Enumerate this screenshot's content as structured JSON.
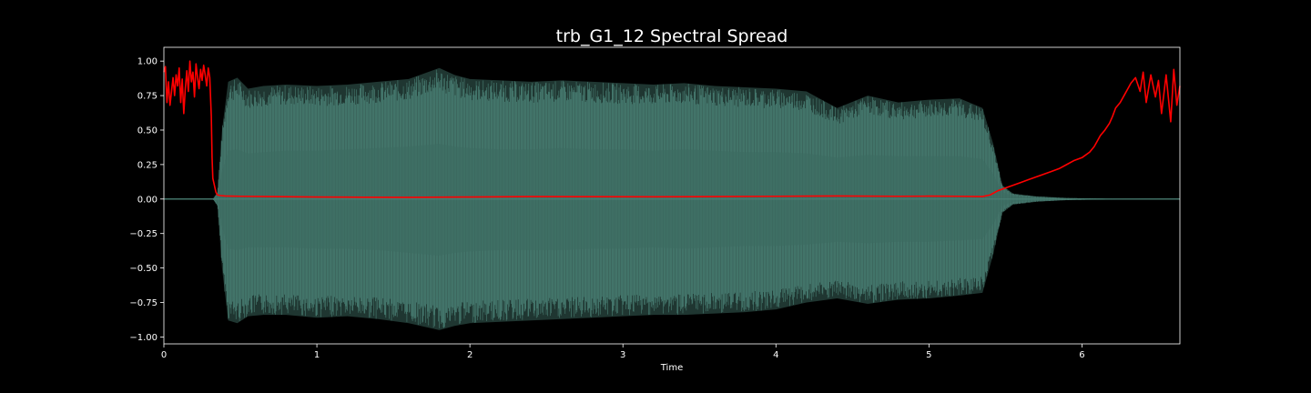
{
  "chart_data": {
    "type": "line",
    "title": "trb_G1_12 Spectral Spread",
    "xlabel": "Time",
    "ylabel": "",
    "xlim": [
      0,
      6.64
    ],
    "ylim": [
      -1.05,
      1.1
    ],
    "xticks": [
      0,
      1,
      2,
      3,
      4,
      5,
      6
    ],
    "xtick_labels": [
      "0",
      "1",
      "2",
      "3",
      "4",
      "5",
      "6"
    ],
    "yticks": [
      1.0,
      0.75,
      0.5,
      0.25,
      0.0,
      -0.25,
      -0.5,
      -0.75,
      -1.0
    ],
    "ytick_labels": [
      "1.00",
      "0.75",
      "0.50",
      "0.25",
      "0.00",
      "−0.25",
      "−0.50",
      "−0.75",
      "−1.00"
    ],
    "grid": false,
    "colors": {
      "background": "#000000",
      "axes": "#ffffff",
      "waveform": "#5a9a8c",
      "waveform_inner": "#3d6b61",
      "spread_line": "#ff0000"
    },
    "series": [
      {
        "kind": "waveform-envelope",
        "x": [
          0.0,
          0.32,
          0.35,
          0.38,
          0.42,
          0.48,
          0.55,
          0.65,
          0.8,
          1.0,
          1.2,
          1.4,
          1.6,
          1.8,
          1.9,
          2.0,
          2.2,
          2.4,
          2.6,
          2.8,
          3.0,
          3.2,
          3.4,
          3.6,
          3.8,
          4.0,
          4.2,
          4.4,
          4.6,
          4.8,
          5.0,
          5.2,
          5.35,
          5.42,
          5.48,
          5.55,
          5.7,
          5.9,
          6.2,
          6.64
        ],
        "upper": [
          0.0,
          0.0,
          0.05,
          0.5,
          0.85,
          0.88,
          0.8,
          0.82,
          0.83,
          0.82,
          0.83,
          0.85,
          0.87,
          0.95,
          0.9,
          0.87,
          0.86,
          0.85,
          0.86,
          0.85,
          0.84,
          0.83,
          0.84,
          0.82,
          0.81,
          0.8,
          0.78,
          0.66,
          0.75,
          0.7,
          0.72,
          0.73,
          0.66,
          0.4,
          0.1,
          0.04,
          0.02,
          0.008,
          0.002,
          0.0
        ],
        "lower": [
          0.0,
          0.0,
          -0.05,
          -0.5,
          -0.88,
          -0.9,
          -0.85,
          -0.84,
          -0.84,
          -0.86,
          -0.85,
          -0.87,
          -0.9,
          -0.95,
          -0.92,
          -0.9,
          -0.89,
          -0.88,
          -0.87,
          -0.86,
          -0.85,
          -0.84,
          -0.84,
          -0.83,
          -0.82,
          -0.8,
          -0.75,
          -0.72,
          -0.76,
          -0.73,
          -0.72,
          -0.7,
          -0.68,
          -0.4,
          -0.1,
          -0.04,
          -0.02,
          -0.008,
          -0.002,
          0.0
        ],
        "inner_upper": [
          0.0,
          0.0,
          0.02,
          0.2,
          0.35,
          0.36,
          0.33,
          0.34,
          0.35,
          0.35,
          0.36,
          0.37,
          0.38,
          0.4,
          0.38,
          0.37,
          0.36,
          0.36,
          0.37,
          0.36,
          0.36,
          0.35,
          0.36,
          0.35,
          0.34,
          0.34,
          0.33,
          0.3,
          0.32,
          0.31,
          0.31,
          0.31,
          0.29,
          0.18,
          0.05,
          0.02,
          0.01,
          0.004,
          0.001,
          0.0
        ],
        "inner_lower": [
          0.0,
          0.0,
          -0.02,
          -0.2,
          -0.36,
          -0.37,
          -0.35,
          -0.35,
          -0.35,
          -0.36,
          -0.36,
          -0.37,
          -0.39,
          -0.41,
          -0.39,
          -0.38,
          -0.37,
          -0.37,
          -0.37,
          -0.36,
          -0.36,
          -0.35,
          -0.36,
          -0.35,
          -0.34,
          -0.34,
          -0.33,
          -0.31,
          -0.32,
          -0.31,
          -0.31,
          -0.3,
          -0.29,
          -0.18,
          -0.05,
          -0.02,
          -0.01,
          -0.004,
          -0.001,
          0.0
        ]
      },
      {
        "kind": "spectral-spread",
        "x": [
          0.0,
          0.01,
          0.02,
          0.03,
          0.04,
          0.05,
          0.06,
          0.07,
          0.08,
          0.09,
          0.1,
          0.11,
          0.12,
          0.13,
          0.14,
          0.15,
          0.16,
          0.17,
          0.18,
          0.19,
          0.2,
          0.21,
          0.22,
          0.23,
          0.24,
          0.25,
          0.26,
          0.27,
          0.28,
          0.29,
          0.3,
          0.31,
          0.315,
          0.32,
          0.33,
          0.34,
          0.35,
          0.37,
          0.4,
          0.5,
          0.7,
          1.0,
          1.3,
          1.6,
          2.0,
          2.4,
          2.8,
          3.2,
          3.6,
          4.0,
          4.4,
          4.8,
          5.0,
          5.2,
          5.35,
          5.4,
          5.45,
          5.5,
          5.55,
          5.6,
          5.65,
          5.7,
          5.75,
          5.8,
          5.85,
          5.9,
          5.95,
          6.0,
          6.05,
          6.08,
          6.1,
          6.12,
          6.15,
          6.18,
          6.2,
          6.22,
          6.25,
          6.28,
          6.3,
          6.32,
          6.35,
          6.38,
          6.4,
          6.42,
          6.45,
          6.48,
          6.5,
          6.52,
          6.55,
          6.58,
          6.6,
          6.62,
          6.64
        ],
        "y": [
          0.92,
          0.96,
          0.7,
          0.85,
          0.68,
          0.78,
          0.88,
          0.75,
          0.9,
          0.82,
          0.95,
          0.7,
          0.87,
          0.62,
          0.8,
          0.93,
          0.78,
          1.0,
          0.85,
          0.92,
          0.74,
          0.98,
          0.88,
          0.8,
          0.94,
          0.86,
          0.97,
          0.9,
          0.82,
          0.95,
          0.88,
          0.6,
          0.3,
          0.15,
          0.1,
          0.05,
          0.03,
          0.025,
          0.022,
          0.02,
          0.018,
          0.015,
          0.013,
          0.012,
          0.015,
          0.018,
          0.017,
          0.016,
          0.018,
          0.02,
          0.022,
          0.02,
          0.021,
          0.02,
          0.018,
          0.03,
          0.06,
          0.08,
          0.1,
          0.12,
          0.14,
          0.16,
          0.18,
          0.2,
          0.22,
          0.25,
          0.28,
          0.3,
          0.34,
          0.38,
          0.42,
          0.46,
          0.5,
          0.55,
          0.6,
          0.66,
          0.7,
          0.76,
          0.8,
          0.84,
          0.88,
          0.78,
          0.92,
          0.7,
          0.9,
          0.74,
          0.86,
          0.62,
          0.9,
          0.56,
          0.94,
          0.68,
          0.82
        ]
      }
    ]
  }
}
